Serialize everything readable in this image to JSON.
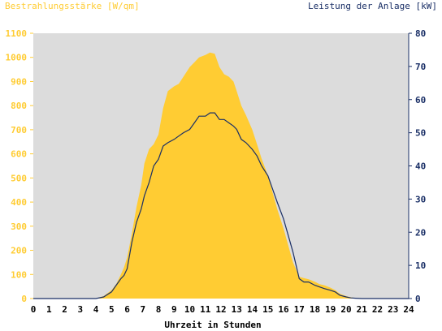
{
  "chart_data": {
    "type": "area",
    "left_axis_title": "Bestrahlungsstärke [W/qm]",
    "right_axis_title": "Leistung der Anlage [kW]",
    "xlabel": "Uhrzeit in Stunden",
    "x_ticks": [
      "0",
      "1",
      "2",
      "3",
      "4",
      "5",
      "6",
      "7",
      "8",
      "9",
      "10",
      "11",
      "12",
      "13",
      "14",
      "15",
      "16",
      "17",
      "18",
      "19",
      "20",
      "21",
      "22",
      "23",
      "24"
    ],
    "xlim": [
      0,
      24
    ],
    "ylim_left": [
      0,
      1100
    ],
    "ylim_right": [
      0,
      80
    ],
    "y_ticks_left": [
      "0",
      "100",
      "200",
      "300",
      "400",
      "500",
      "600",
      "700",
      "800",
      "900",
      "1000",
      "1100"
    ],
    "y_ticks_right": [
      "0",
      "10",
      "20",
      "30",
      "40",
      "50",
      "60",
      "70",
      "80"
    ],
    "grid": false,
    "series": [
      {
        "axis": "left",
        "render": "area",
        "x": [
          0,
          4.0,
          4.5,
          5.0,
          5.3,
          5.6,
          5.8,
          6.0,
          6.3,
          6.6,
          6.9,
          7.1,
          7.4,
          7.7,
          8.0,
          8.3,
          8.6,
          9.0,
          9.3,
          9.6,
          10.0,
          10.3,
          10.6,
          11.0,
          11.3,
          11.6,
          11.9,
          12.2,
          12.5,
          12.8,
          13.0,
          13.3,
          13.6,
          14.0,
          14.3,
          14.6,
          15.0,
          15.3,
          15.6,
          16.0,
          16.3,
          16.6,
          17.0,
          17.3,
          17.6,
          18.0,
          18.3,
          18.6,
          19.0,
          19.3,
          19.6,
          20.0,
          20.3,
          20.6,
          21.0,
          24
        ],
        "values": [
          0,
          0,
          10,
          35,
          60,
          100,
          130,
          170,
          270,
          380,
          470,
          560,
          620,
          640,
          680,
          790,
          860,
          880,
          890,
          920,
          960,
          980,
          1000,
          1010,
          1020,
          1015,
          960,
          930,
          920,
          900,
          860,
          800,
          760,
          700,
          640,
          580,
          510,
          440,
          370,
          290,
          220,
          150,
          90,
          85,
          80,
          70,
          60,
          55,
          45,
          35,
          20,
          10,
          5,
          2,
          0,
          0
        ]
      },
      {
        "axis": "right",
        "render": "line",
        "x": [
          0,
          4.0,
          4.5,
          5.0,
          5.3,
          5.6,
          5.8,
          6.0,
          6.3,
          6.6,
          6.9,
          7.1,
          7.4,
          7.7,
          8.0,
          8.3,
          8.6,
          9.0,
          9.3,
          9.6,
          10.0,
          10.3,
          10.6,
          11.0,
          11.3,
          11.6,
          11.9,
          12.2,
          12.5,
          12.8,
          13.0,
          13.3,
          13.6,
          14.0,
          14.3,
          14.6,
          15.0,
          15.3,
          15.6,
          16.0,
          16.3,
          16.6,
          17.0,
          17.3,
          17.6,
          18.0,
          18.3,
          18.6,
          19.0,
          19.3,
          19.6,
          20.0,
          20.3,
          20.6,
          21.0,
          24
        ],
        "values": [
          0,
          0,
          0.5,
          2,
          4,
          6,
          7,
          9,
          17,
          23,
          27,
          31,
          35,
          40,
          42,
          46,
          47,
          48,
          49,
          50,
          51,
          53,
          55,
          55,
          56,
          56,
          54,
          54,
          53,
          52,
          51,
          48,
          47,
          45,
          43,
          40,
          37,
          33,
          29,
          24,
          19,
          14,
          6,
          5,
          5,
          4,
          3.5,
          3,
          2.5,
          2,
          1,
          0.5,
          0.2,
          0.1,
          0,
          0
        ]
      }
    ],
    "colors": {
      "irradiance_fill": "#ffcc33",
      "power_line": "#1a2f66",
      "plot_background": "#dcdcdc",
      "left_axis_text": "#ffcc33",
      "right_axis_text": "#1a2f66",
      "x_axis_text": "#000000"
    }
  }
}
